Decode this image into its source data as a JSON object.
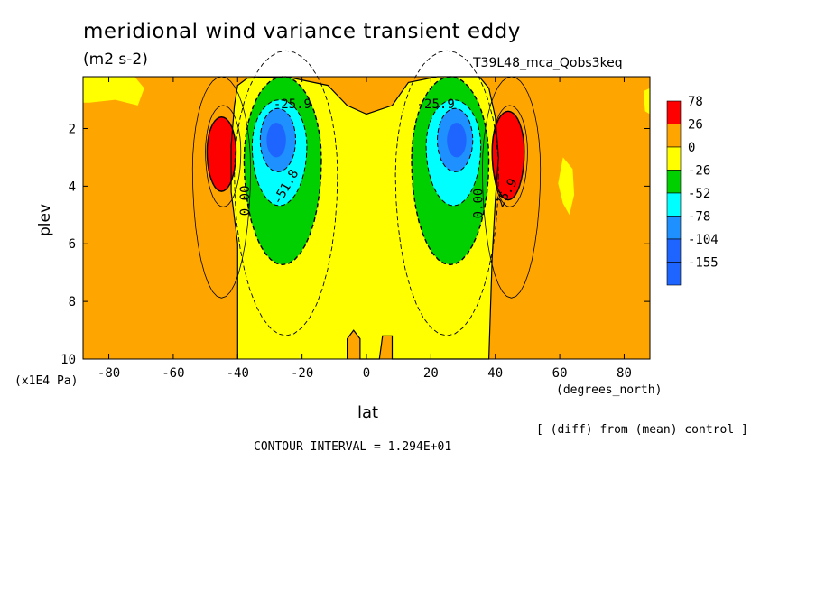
{
  "header": {
    "title": "meridional wind variance transient eddy",
    "units": "(m2 s-2)",
    "run_id": "T39L48_mca_Qobs3keq"
  },
  "footer": {
    "diff_note": "[ (diff) from (mean) control ]",
    "contour_interval": "CONTOUR INTERVAL = 1.294E+01"
  },
  "chart_data": {
    "type": "contour",
    "xlabel": "lat",
    "x_units": "(degrees_north)",
    "ylabel": "plev",
    "y_units": "(x1E4 Pa)",
    "xlim": [
      -88,
      88
    ],
    "ylim": [
      10,
      0.2
    ],
    "y_inverted": true,
    "x_ticks": [
      -80,
      -60,
      -40,
      -20,
      0,
      20,
      40,
      60,
      80
    ],
    "y_ticks": [
      2,
      4,
      6,
      8,
      10
    ],
    "contour_interval": 12.94,
    "background_level": "0 to 26",
    "legend": {
      "placement": "right",
      "levels": [
        {
          "label": "78",
          "color": "#ff0000"
        },
        {
          "label": "26",
          "color": "#ffa500"
        },
        {
          "label": "0",
          "color": "#ffff00"
        },
        {
          "label": "-26",
          "color": "#00d000"
        },
        {
          "label": "-52",
          "color": "#00ffff"
        },
        {
          "label": "-78",
          "color": "#1e90ff"
        },
        {
          "label": "-104",
          "color": "#1e64ff"
        },
        {
          "label": "-155",
          "color": ""
        }
      ]
    },
    "contour_labels": [
      "-25.9",
      "-51.8",
      "0.00",
      "-25.9",
      "0.00",
      "25.9"
    ],
    "features": [
      {
        "name": "southern negative core",
        "lat": -27,
        "plev": 2.5,
        "min_level": -104
      },
      {
        "name": "northern negative core",
        "lat": 27,
        "plev": 2.5,
        "min_level": -104
      },
      {
        "name": "southern positive core",
        "lat": -45,
        "plev": 2.8,
        "max_level": 26
      },
      {
        "name": "northern positive core",
        "lat": 43,
        "plev": 2.8,
        "max_level": 26
      }
    ]
  }
}
